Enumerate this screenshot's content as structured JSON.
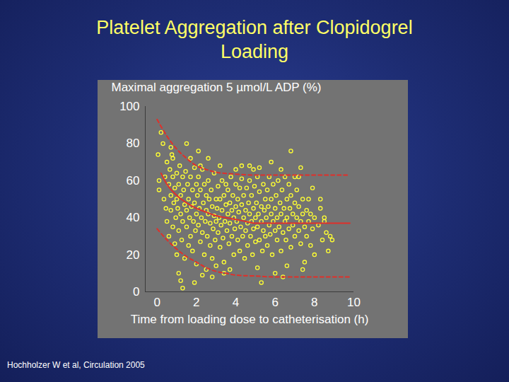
{
  "chart_data": {
    "type": "scatter",
    "title": "Platelet Aggregation after Clopidogrel Loading",
    "y_label": "Maximal aggregation 5 µmol/L ADP (%)",
    "x_label": "Time from loading dose to catheterisation (h)",
    "caption": "Hochholzer W et al, Circulation 2005",
    "xlim": [
      -0.6,
      10
    ],
    "xticks": [
      0,
      2,
      4,
      6,
      8,
      10
    ],
    "ylim": [
      0,
      100
    ],
    "yticks": [
      0,
      20,
      40,
      60,
      80,
      100
    ],
    "series": [
      {
        "type": "scatter",
        "color": "#ffff33",
        "marker": "circle",
        "x": [
          0.05,
          0.1,
          0.1,
          0.2,
          0.3,
          0.35,
          0.4,
          0.45,
          0.5,
          0.5,
          0.6,
          0.6,
          0.65,
          0.7,
          0.7,
          0.75,
          0.8,
          0.8,
          0.85,
          0.9,
          0.9,
          0.95,
          1.0,
          1.0,
          1.0,
          0.7,
          0.8,
          1.05,
          1.1,
          1.1,
          1.15,
          1.2,
          1.2,
          1.25,
          1.3,
          1.3,
          1.35,
          1.4,
          1.4,
          1.45,
          1.5,
          1.5,
          1.1,
          1.2,
          1.3,
          1.5,
          1.55,
          1.6,
          1.6,
          1.65,
          1.7,
          1.7,
          1.75,
          1.8,
          1.8,
          1.85,
          1.9,
          1.9,
          1.95,
          2.0,
          2.0,
          2.0,
          1.7,
          1.9,
          2.05,
          2.1,
          2.1,
          2.15,
          2.2,
          2.2,
          2.25,
          2.3,
          2.3,
          2.35,
          2.4,
          2.4,
          2.45,
          2.5,
          2.5,
          2.5,
          2.1,
          2.3,
          2.2,
          2.55,
          2.6,
          2.6,
          2.65,
          2.7,
          2.7,
          2.75,
          2.8,
          2.8,
          2.85,
          2.9,
          2.9,
          2.95,
          3.0,
          3.0,
          2.6,
          2.8,
          3.0,
          3.05,
          3.1,
          3.1,
          3.15,
          3.2,
          3.2,
          3.25,
          3.3,
          3.3,
          3.35,
          3.4,
          3.4,
          3.45,
          3.5,
          3.5,
          3.2,
          3.4,
          3.55,
          3.6,
          3.6,
          3.65,
          3.7,
          3.7,
          3.75,
          3.8,
          3.8,
          3.85,
          3.9,
          3.9,
          3.95,
          4.0,
          4.0,
          3.7,
          4.0,
          4.05,
          4.1,
          4.1,
          4.15,
          4.2,
          4.2,
          4.25,
          4.3,
          4.3,
          4.35,
          4.4,
          4.4,
          4.45,
          4.5,
          4.5,
          4.3,
          4.55,
          4.6,
          4.6,
          4.65,
          4.7,
          4.7,
          4.75,
          4.8,
          4.8,
          4.85,
          4.9,
          4.9,
          4.95,
          5.0,
          5.0,
          4.7,
          4.9,
          5.05,
          5.1,
          5.1,
          5.15,
          5.2,
          5.2,
          5.3,
          5.3,
          5.35,
          5.4,
          5.4,
          5.45,
          5.5,
          5.5,
          5.2,
          5.3,
          5.1,
          5.55,
          5.6,
          5.6,
          5.65,
          5.7,
          5.7,
          5.75,
          5.8,
          5.8,
          5.85,
          5.9,
          5.9,
          6.0,
          6.0,
          5.8,
          6.0,
          6.05,
          6.1,
          6.1,
          6.15,
          6.2,
          6.25,
          6.3,
          6.3,
          6.35,
          6.4,
          6.45,
          6.5,
          6.5,
          6.3,
          6.4,
          6.55,
          6.6,
          6.6,
          6.7,
          6.7,
          6.75,
          6.8,
          6.8,
          6.9,
          6.9,
          7.0,
          7.0,
          6.8,
          6.6,
          7.0,
          7.1,
          7.1,
          7.2,
          7.2,
          7.3,
          7.3,
          7.4,
          7.4,
          7.5,
          7.5,
          7.2,
          7.4,
          7.3,
          7.6,
          7.6,
          7.7,
          7.7,
          7.8,
          7.8,
          7.9,
          8.0,
          8.0,
          7.9,
          8.2,
          8.3,
          8.4,
          8.5,
          8.6,
          8.7,
          8.8,
          8.3,
          8.5,
          8.9
        ],
        "values": [
          74,
          55,
          60,
          86,
          80,
          50,
          62,
          45,
          70,
          38,
          58,
          30,
          66,
          52,
          44,
          74,
          35,
          62,
          48,
          26,
          56,
          40,
          64,
          20,
          50,
          78,
          72,
          45,
          58,
          33,
          68,
          42,
          52,
          28,
          62,
          38,
          55,
          47,
          18,
          65,
          35,
          44,
          10,
          6,
          2,
          80,
          58,
          25,
          50,
          40,
          62,
          30,
          46,
          55,
          22,
          38,
          48,
          67,
          33,
          42,
          58,
          15,
          72,
          5,
          52,
          36,
          62,
          45,
          27,
          55,
          40,
          66,
          32,
          48,
          20,
          58,
          38,
          52,
          12,
          44,
          76,
          9,
          68,
          30,
          60,
          42,
          50,
          25,
          37,
          55,
          46,
          18,
          34,
          64,
          41,
          28,
          50,
          38,
          72,
          8,
          14,
          45,
          32,
          57,
          40,
          24,
          50,
          36,
          60,
          44,
          29,
          52,
          16,
          38,
          47,
          58,
          68,
          10,
          33,
          42,
          55,
          26,
          48,
          37,
          62,
          30,
          44,
          52,
          20,
          40,
          34,
          46,
          58,
          12,
          66,
          38,
          50,
          28,
          43,
          56,
          22,
          35,
          47,
          61,
          30,
          40,
          52,
          18,
          44,
          33,
          68,
          56,
          37,
          25,
          48,
          42,
          60,
          30,
          52,
          38,
          20,
          45,
          34,
          57,
          40,
          27,
          68,
          66,
          48,
          35,
          62,
          42,
          28,
          54,
          38,
          46,
          22,
          58,
          33,
          44,
          50,
          30,
          67,
          5,
          13,
          40,
          55,
          25,
          46,
          36,
          62,
          31,
          50,
          42,
          20,
          38,
          58,
          45,
          33,
          70,
          10,
          52,
          40,
          28,
          60,
          35,
          48,
          42,
          22,
          55,
          32,
          45,
          38,
          62,
          66,
          8,
          28,
          50,
          40,
          34,
          58,
          45,
          24,
          52,
          36,
          42,
          30,
          48,
          76,
          14,
          62,
          40,
          55,
          33,
          46,
          26,
          38,
          50,
          42,
          35,
          16,
          62,
          12,
          67,
          44,
          30,
          38,
          50,
          25,
          42,
          34,
          40,
          20,
          56,
          36,
          45,
          28,
          40,
          32,
          22,
          30,
          50,
          38,
          28
        ]
      },
      {
        "type": "line",
        "color": "#e0302a",
        "line_style": "solid",
        "x": [
          0.2,
          0.5,
          1,
          1.5,
          2,
          2.5,
          3,
          3.5,
          4,
          4.5,
          5,
          6,
          7,
          8,
          9,
          9.8
        ],
        "values": [
          64,
          58,
          52,
          48,
          45,
          43,
          41,
          40,
          39,
          38,
          37,
          37,
          37,
          37,
          37,
          37
        ]
      },
      {
        "type": "line",
        "color": "#e0302a",
        "line_style": "dashed",
        "x": [
          0,
          0.5,
          1,
          1.5,
          2,
          2.5,
          3,
          4,
          5,
          6,
          7,
          8,
          9,
          9.8
        ],
        "values": [
          93,
          84,
          77,
          72,
          68,
          66,
          64.5,
          63.5,
          63,
          63,
          63,
          63,
          63,
          63
        ]
      },
      {
        "type": "line",
        "color": "#e0302a",
        "line_style": "dashed",
        "x": [
          0,
          0.5,
          1,
          1.5,
          2,
          2.5,
          3,
          3.5,
          4,
          5,
          6,
          7,
          8,
          9,
          9.8
        ],
        "values": [
          34,
          28,
          23,
          19,
          16,
          13,
          11,
          10,
          9,
          8.5,
          8,
          8,
          8,
          8,
          8
        ]
      }
    ]
  }
}
